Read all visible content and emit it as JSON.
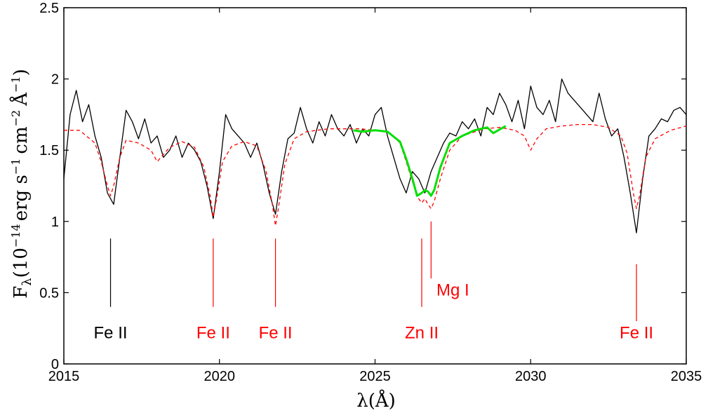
{
  "chart_data": {
    "type": "line",
    "xlabel": "λ(Å)",
    "ylabel": "F_λ(10^−14 erg s^−1 cm^−2 Å^−1)",
    "ylabel_parts": {
      "f": "F",
      "lambda_sub": "λ",
      "open": "(10",
      "exp1": "−14",
      "erg": "erg s",
      "exp2": "−1",
      "cm": "cm",
      "exp3": "−2",
      "angstrom": "Å",
      "exp4": "−1",
      "close": ")"
    },
    "xlim": [
      2015,
      2035
    ],
    "ylim": [
      0,
      2.5
    ],
    "xticks": [
      2015,
      2020,
      2025,
      2030,
      2035
    ],
    "xtick_labels": [
      "2015",
      "2020",
      "2025",
      "2030",
      "2035"
    ],
    "yticks": [
      0,
      0.5,
      1,
      1.5,
      2,
      2.5
    ],
    "ytick_labels": [
      "0",
      "0.5",
      "1",
      "1.5",
      "2",
      "2.5"
    ],
    "grid": false,
    "colors": {
      "observed": "#000000",
      "model": "#ff0000",
      "fit": "#00e000",
      "black_label": "#000000",
      "red_label": "#ff0000"
    },
    "series": [
      {
        "style": "solid-black",
        "x": [
          2015.0,
          2015.2,
          2015.4,
          2015.6,
          2015.8,
          2016.0,
          2016.2,
          2016.4,
          2016.6,
          2016.8,
          2017.0,
          2017.2,
          2017.4,
          2017.6,
          2017.8,
          2018.0,
          2018.2,
          2018.4,
          2018.6,
          2018.8,
          2019.0,
          2019.2,
          2019.4,
          2019.6,
          2019.8,
          2020.0,
          2020.2,
          2020.4,
          2020.6,
          2020.8,
          2021.0,
          2021.2,
          2021.4,
          2021.6,
          2021.8,
          2022.0,
          2022.2,
          2022.4,
          2022.6,
          2022.8,
          2023.0,
          2023.2,
          2023.4,
          2023.6,
          2023.8,
          2024.0,
          2024.2,
          2024.4,
          2024.6,
          2024.8,
          2025.0,
          2025.2,
          2025.4,
          2025.6,
          2025.8,
          2026.0,
          2026.2,
          2026.4,
          2026.6,
          2026.8,
          2027.0,
          2027.2,
          2027.4,
          2027.6,
          2027.8,
          2028.0,
          2028.2,
          2028.4,
          2028.6,
          2028.8,
          2029.0,
          2029.2,
          2029.4,
          2029.6,
          2029.8,
          2030.0,
          2030.2,
          2030.4,
          2030.6,
          2030.8,
          2031.0,
          2031.2,
          2031.4,
          2031.6,
          2031.8,
          2032.0,
          2032.2,
          2032.4,
          2032.6,
          2032.8,
          2033.0,
          2033.2,
          2033.4,
          2033.6,
          2033.8,
          2034.0,
          2034.2,
          2034.4,
          2034.6,
          2034.8,
          2035.0
        ],
        "y": [
          1.3,
          1.75,
          1.92,
          1.7,
          1.82,
          1.6,
          1.45,
          1.2,
          1.12,
          1.45,
          1.78,
          1.7,
          1.58,
          1.72,
          1.55,
          1.6,
          1.45,
          1.5,
          1.6,
          1.45,
          1.55,
          1.5,
          1.42,
          1.25,
          1.02,
          1.35,
          1.75,
          1.65,
          1.6,
          1.55,
          1.45,
          1.55,
          1.4,
          1.2,
          1.05,
          1.35,
          1.58,
          1.62,
          1.8,
          1.65,
          1.55,
          1.7,
          1.6,
          1.75,
          1.65,
          1.6,
          1.68,
          1.55,
          1.65,
          1.6,
          1.75,
          1.8,
          1.6,
          1.45,
          1.3,
          1.2,
          1.35,
          1.3,
          1.2,
          1.35,
          1.45,
          1.55,
          1.62,
          1.6,
          1.7,
          1.65,
          1.72,
          1.6,
          1.8,
          1.75,
          1.9,
          1.82,
          1.7,
          1.85,
          1.65,
          1.95,
          1.8,
          1.75,
          1.85,
          1.7,
          2.0,
          1.9,
          1.85,
          1.8,
          1.75,
          1.7,
          1.9,
          1.72,
          1.6,
          1.65,
          1.45,
          1.2,
          0.92,
          1.3,
          1.6,
          1.65,
          1.72,
          1.7,
          1.78,
          1.8,
          1.75
        ]
      },
      {
        "style": "dashed-red",
        "x": [
          2015.0,
          2015.5,
          2016.0,
          2016.2,
          2016.4,
          2016.5,
          2016.6,
          2016.8,
          2017.0,
          2017.4,
          2017.8,
          2018.0,
          2018.4,
          2018.8,
          2019.2,
          2019.5,
          2019.7,
          2019.8,
          2019.9,
          2020.1,
          2020.4,
          2020.8,
          2021.2,
          2021.5,
          2021.7,
          2021.8,
          2021.9,
          2022.1,
          2022.4,
          2022.8,
          2023.5,
          2024.0,
          2024.5,
          2025.0,
          2025.5,
          2025.8,
          2026.0,
          2026.2,
          2026.4,
          2026.5,
          2026.6,
          2026.7,
          2026.8,
          2026.9,
          2027.1,
          2027.4,
          2027.8,
          2028.5,
          2029.0,
          2029.5,
          2029.8,
          2030.0,
          2030.2,
          2030.5,
          2031.0,
          2031.5,
          2032.0,
          2032.5,
          2032.9,
          2033.1,
          2033.3,
          2033.4,
          2033.5,
          2033.7,
          2034.0,
          2034.5,
          2035.0
        ],
        "y": [
          1.64,
          1.64,
          1.55,
          1.42,
          1.25,
          1.18,
          1.25,
          1.45,
          1.57,
          1.55,
          1.5,
          1.42,
          1.52,
          1.56,
          1.52,
          1.38,
          1.18,
          1.03,
          1.15,
          1.42,
          1.53,
          1.56,
          1.53,
          1.35,
          1.12,
          0.97,
          1.1,
          1.4,
          1.58,
          1.63,
          1.65,
          1.65,
          1.65,
          1.64,
          1.62,
          1.55,
          1.42,
          1.28,
          1.16,
          1.13,
          1.16,
          1.12,
          1.09,
          1.14,
          1.3,
          1.5,
          1.6,
          1.65,
          1.66,
          1.64,
          1.6,
          1.5,
          1.58,
          1.65,
          1.67,
          1.68,
          1.68,
          1.66,
          1.6,
          1.48,
          1.2,
          1.09,
          1.18,
          1.45,
          1.58,
          1.64,
          1.67
        ]
      },
      {
        "style": "solid-green",
        "x": [
          2024.3,
          2024.6,
          2025.0,
          2025.4,
          2025.8,
          2026.0,
          2026.2,
          2026.35,
          2026.5,
          2026.6,
          2026.7,
          2026.8,
          2026.9,
          2027.1,
          2027.4,
          2027.8,
          2028.2,
          2028.6,
          2028.8,
          2029.2
        ],
        "y": [
          1.64,
          1.63,
          1.64,
          1.63,
          1.56,
          1.44,
          1.3,
          1.18,
          1.2,
          1.22,
          1.21,
          1.18,
          1.22,
          1.38,
          1.55,
          1.6,
          1.64,
          1.66,
          1.62,
          1.67
        ]
      }
    ],
    "annotations": [
      {
        "text": "Fe II",
        "x": 2016.5,
        "tick_top": 0.88,
        "tick_bottom": 0.4,
        "color": "black",
        "label_x": 2016.5,
        "label_y": 0.18
      },
      {
        "text": "Fe II",
        "x": 2019.8,
        "tick_top": 0.88,
        "tick_bottom": 0.4,
        "color": "red",
        "label_x": 2019.8,
        "label_y": 0.18
      },
      {
        "text": "Fe II",
        "x": 2021.8,
        "tick_top": 0.88,
        "tick_bottom": 0.4,
        "color": "red",
        "label_x": 2021.8,
        "label_y": 0.18
      },
      {
        "text": "Zn II",
        "x": 2026.5,
        "tick_top": 0.88,
        "tick_bottom": 0.4,
        "color": "red",
        "label_x": 2026.5,
        "label_y": 0.18
      },
      {
        "text": "Mg I",
        "x": 2026.8,
        "tick_top": 1.0,
        "tick_bottom": 0.6,
        "color": "red",
        "label_x": 2027.5,
        "label_y": 0.48
      },
      {
        "text": "Fe II",
        "x": 2033.4,
        "tick_top": 0.7,
        "tick_bottom": 0.3,
        "color": "red",
        "label_x": 2033.4,
        "label_y": 0.18
      }
    ]
  }
}
